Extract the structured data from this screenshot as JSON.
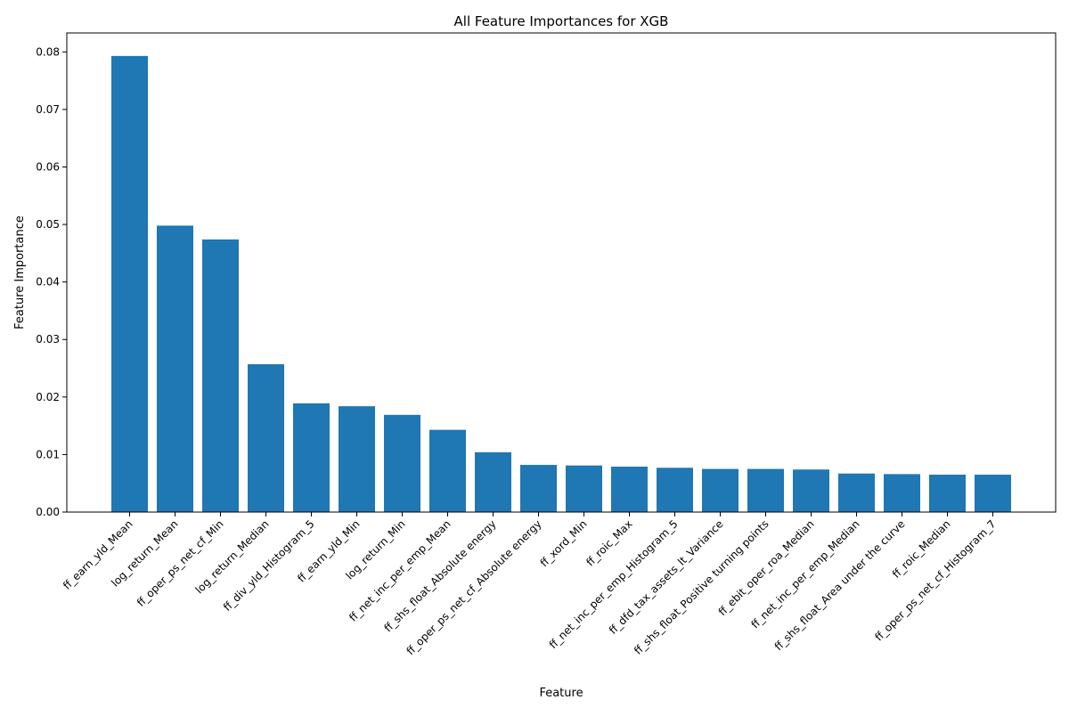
{
  "chart_data": {
    "type": "bar",
    "title": "All Feature Importances for XGB",
    "xlabel": "Feature",
    "ylabel": "Feature Importance",
    "ylim": [
      0,
      0.0833
    ],
    "yticks": [
      0.0,
      0.01,
      0.02,
      0.03,
      0.04,
      0.05,
      0.06,
      0.07,
      0.08
    ],
    "ytick_labels": [
      "0.00",
      "0.01",
      "0.02",
      "0.03",
      "0.04",
      "0.05",
      "0.06",
      "0.07",
      "0.08"
    ],
    "grid": false,
    "bar_color": "#1f77b4",
    "categories": [
      "ff_earn_yld_Mean",
      "log_return_Mean",
      "ff_oper_ps_net_cf_Min",
      "log_return_Median",
      "ff_div_yld_Histogram_5",
      "ff_earn_yld_Min",
      "log_return_Min",
      "ff_net_inc_per_emp_Mean",
      "ff_shs_float_Absolute energy",
      "ff_oper_ps_net_cf_Absolute energy",
      "ff_xord_Min",
      "ff_roic_Max",
      "ff_net_inc_per_emp_Histogram_5",
      "ff_dfd_tax_assets_lt_Variance",
      "ff_shs_float_Positive turning points",
      "ff_ebit_oper_roa_Median",
      "ff_net_inc_per_emp_Median",
      "ff_shs_float_Area under the curve",
      "ff_roic_Median",
      "ff_oper_ps_net_cf_Histogram_7"
    ],
    "values": [
      0.0793,
      0.0498,
      0.0474,
      0.0257,
      0.0189,
      0.0184,
      0.0169,
      0.0143,
      0.0104,
      0.0082,
      0.0081,
      0.0079,
      0.0077,
      0.0075,
      0.0075,
      0.0074,
      0.0067,
      0.0066,
      0.0065,
      0.0065
    ]
  }
}
